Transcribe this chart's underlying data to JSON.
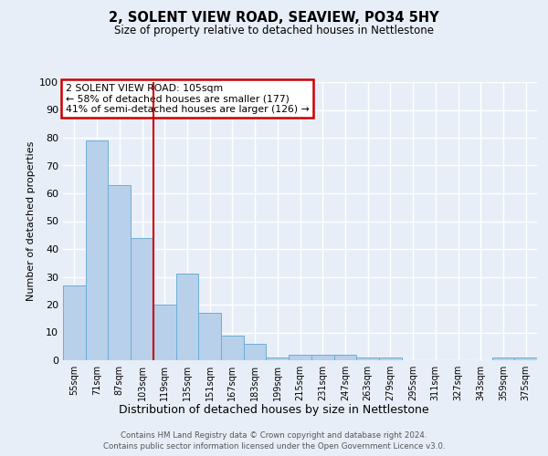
{
  "title_line1": "2, SOLENT VIEW ROAD, SEAVIEW, PO34 5HY",
  "title_line2": "Size of property relative to detached houses in Nettlestone",
  "xlabel": "Distribution of detached houses by size in Nettlestone",
  "ylabel": "Number of detached properties",
  "bin_labels": [
    "55sqm",
    "71sqm",
    "87sqm",
    "103sqm",
    "119sqm",
    "135sqm",
    "151sqm",
    "167sqm",
    "183sqm",
    "199sqm",
    "215sqm",
    "231sqm",
    "247sqm",
    "263sqm",
    "279sqm",
    "295sqm",
    "311sqm",
    "327sqm",
    "343sqm",
    "359sqm",
    "375sqm"
  ],
  "bar_values": [
    27,
    79,
    63,
    44,
    20,
    31,
    17,
    9,
    6,
    1,
    2,
    2,
    2,
    1,
    1,
    0,
    0,
    0,
    0,
    1,
    1
  ],
  "bar_color": "#b8d0ea",
  "bar_edge_color": "#6baed6",
  "red_line_x": 3.5,
  "red_line_color": "#cc0000",
  "annotation_text": "2 SOLENT VIEW ROAD: 105sqm\n← 58% of detached houses are smaller (177)\n41% of semi-detached houses are larger (126) →",
  "annotation_box_color": "#ffffff",
  "annotation_box_edge": "#cc0000",
  "ylim": [
    0,
    100
  ],
  "yticks": [
    0,
    10,
    20,
    30,
    40,
    50,
    60,
    70,
    80,
    90,
    100
  ],
  "footer_line1": "Contains HM Land Registry data © Crown copyright and database right 2024.",
  "footer_line2": "Contains public sector information licensed under the Open Government Licence v3.0.",
  "bg_color": "#e8eef8",
  "plot_bg_color": "#e8eef8",
  "grid_color": "#ffffff"
}
